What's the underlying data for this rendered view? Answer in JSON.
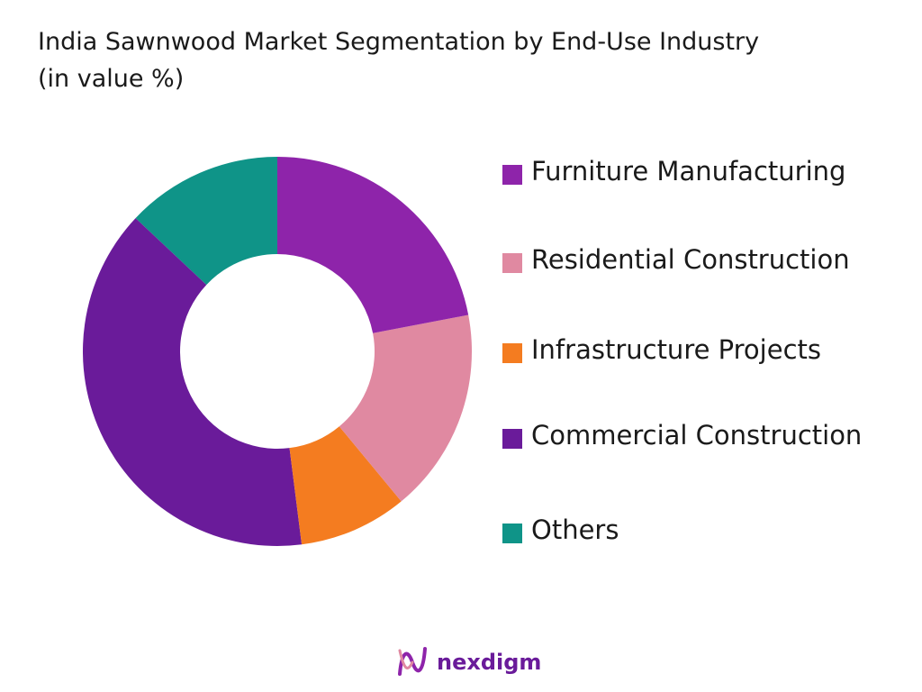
{
  "chart_data": {
    "type": "donut",
    "title": "India Sawnwood Market Segmentation by End-Use Industry",
    "subtitle": "(in value %)",
    "series": [
      {
        "name": "Furniture Manufacturing",
        "color": "#8e24aa",
        "values": [
          22
        ]
      },
      {
        "name": "Residential Construction",
        "color": "#e089a1",
        "values": [
          17
        ]
      },
      {
        "name": "Infrastructure Projects",
        "color": "#f47c20",
        "values": [
          9
        ]
      },
      {
        "name": "Commercial Construction",
        "color": "#6a1b9a",
        "values": [
          39
        ]
      },
      {
        "name": "Others",
        "color": "#0f9488",
        "values": [
          13
        ]
      }
    ]
  },
  "logo": "nexdigm"
}
